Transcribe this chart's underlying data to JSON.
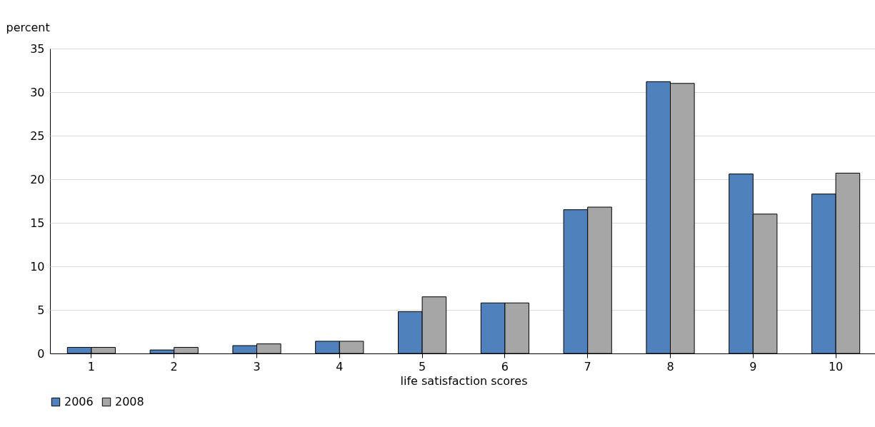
{
  "chart_data": {
    "type": "bar",
    "xlabel": "life satisfaction scores",
    "ylabel": "percent",
    "categories": [
      "1",
      "2",
      "3",
      "4",
      "5",
      "6",
      "7",
      "8",
      "9",
      "10"
    ],
    "series": [
      {
        "name": "2006",
        "color": "#4f81bd",
        "values": [
          0.7,
          0.4,
          0.9,
          1.4,
          4.8,
          5.8,
          16.5,
          31.2,
          20.6,
          18.3
        ]
      },
      {
        "name": "2008",
        "color": "#a6a6a6",
        "values": [
          0.7,
          0.7,
          1.1,
          1.4,
          6.5,
          5.8,
          16.8,
          31.0,
          16.0,
          20.7
        ]
      }
    ],
    "ylim": [
      0,
      35
    ],
    "yticks": [
      0,
      5,
      10,
      15,
      20,
      25,
      30,
      35
    ],
    "grid": "y",
    "legend": "bottom"
  }
}
